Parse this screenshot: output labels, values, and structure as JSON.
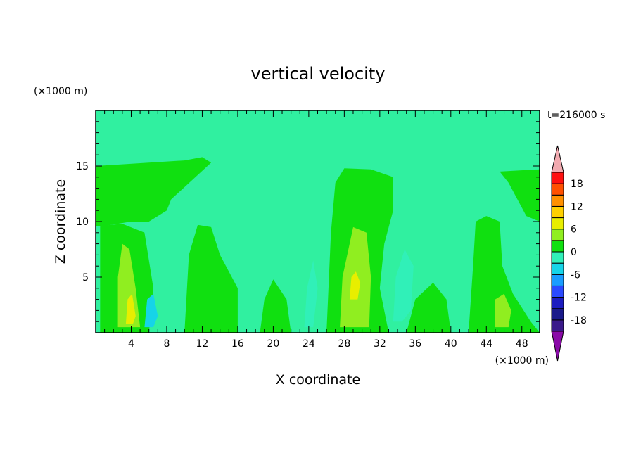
{
  "chart_data": {
    "type": "heatmap",
    "title": "vertical velocity",
    "xlabel": "X coordinate",
    "ylabel": "Z coordinate",
    "x_unit": "(×1000 m)",
    "y_unit": "(×1000 m)",
    "time_label": "t=216000 s",
    "xlim": [
      0,
      50
    ],
    "ylim": [
      0,
      20
    ],
    "xticks": [
      4,
      8,
      12,
      16,
      20,
      24,
      28,
      32,
      36,
      40,
      44,
      48
    ],
    "yticks": [
      5,
      10,
      15
    ],
    "colorbar": {
      "levels": [
        -21,
        -18,
        -15,
        -12,
        -9,
        -6,
        -3,
        0,
        3,
        6,
        9,
        12,
        15,
        18,
        21
      ],
      "labels": [
        18,
        12,
        6,
        0,
        -6,
        -12,
        -18
      ],
      "colors": [
        "#3a1a8a",
        "#1a1a8a",
        "#1c1cc0",
        "#2a4aff",
        "#1a9cff",
        "#16d4e8",
        "#30f0b8",
        "#10e010",
        "#90ee20",
        "#e8ee00",
        "#ffd000",
        "#ff9000",
        "#ff5000",
        "#ff1010"
      ],
      "under_color": "#8a0aa8",
      "over_color": "#f2aab0"
    },
    "background_level_color": "#30f0a0",
    "regions": [
      {
        "level": "0..3",
        "color": "#10e010",
        "feature": "left anvil",
        "points": [
          [
            0,
            15
          ],
          [
            10,
            15.5
          ],
          [
            12,
            15.8
          ],
          [
            13,
            15.3
          ],
          [
            8.5,
            12
          ],
          [
            8,
            11
          ],
          [
            6,
            10
          ],
          [
            4,
            10
          ],
          [
            1,
            9.6
          ],
          [
            0,
            9.6
          ]
        ]
      },
      {
        "level": "0..3",
        "color": "#10e010",
        "feature": "left updraft",
        "points": [
          [
            0.5,
            9.6
          ],
          [
            3,
            9.8
          ],
          [
            5.5,
            9
          ],
          [
            6.5,
            4
          ],
          [
            6,
            0
          ],
          [
            0.5,
            0
          ]
        ]
      },
      {
        "level": "0..3",
        "color": "#10e010",
        "feature": "cell near x=12",
        "points": [
          [
            10,
            0
          ],
          [
            10.5,
            7
          ],
          [
            11.5,
            9.7
          ],
          [
            13,
            9.5
          ],
          [
            14,
            7
          ],
          [
            16,
            4
          ],
          [
            16,
            0
          ]
        ]
      },
      {
        "level": "0..3",
        "color": "#10e010",
        "feature": "central tower",
        "points": [
          [
            26,
            0
          ],
          [
            26.5,
            9
          ],
          [
            27,
            13.5
          ],
          [
            28,
            14.8
          ],
          [
            31,
            14.7
          ],
          [
            33.5,
            14
          ],
          [
            33.5,
            11
          ],
          [
            32.5,
            8
          ],
          [
            32,
            4
          ],
          [
            33,
            0
          ]
        ]
      },
      {
        "level": "0..3",
        "color": "#10e010",
        "feature": "cell near x=44",
        "points": [
          [
            42,
            0
          ],
          [
            42.5,
            6
          ],
          [
            42.8,
            10
          ],
          [
            44,
            10.5
          ],
          [
            45.5,
            10
          ],
          [
            45.8,
            6
          ],
          [
            47,
            3.5
          ],
          [
            49,
            1
          ],
          [
            50,
            0
          ]
        ]
      },
      {
        "level": "0..3",
        "color": "#10e010",
        "feature": "right anvil",
        "points": [
          [
            45.5,
            14.5
          ],
          [
            50,
            14.7
          ],
          [
            50,
            10
          ],
          [
            48.5,
            10.5
          ],
          [
            47.5,
            12
          ],
          [
            46.5,
            13.5
          ]
        ]
      },
      {
        "level": "0..3",
        "color": "#10e010",
        "feature": "low cell x=19-22",
        "points": [
          [
            18.5,
            0
          ],
          [
            19,
            3
          ],
          [
            20,
            4.8
          ],
          [
            21.5,
            3
          ],
          [
            22,
            0
          ]
        ]
      },
      {
        "level": "0..3",
        "color": "#10e010",
        "feature": "low cell x=35-40",
        "points": [
          [
            35,
            0
          ],
          [
            36,
            3
          ],
          [
            38,
            4.5
          ],
          [
            39.5,
            3
          ],
          [
            40,
            0
          ]
        ]
      },
      {
        "level": "3..6",
        "color": "#90ee20",
        "feature": "left core",
        "points": [
          [
            2.5,
            0.5
          ],
          [
            2.5,
            5
          ],
          [
            3,
            8
          ],
          [
            3.8,
            7.5
          ],
          [
            4.5,
            4
          ],
          [
            5,
            0.5
          ]
        ]
      },
      {
        "level": "3..6",
        "color": "#90ee20",
        "feature": "central core",
        "points": [
          [
            27.5,
            0.5
          ],
          [
            27.8,
            5
          ],
          [
            29,
            9.5
          ],
          [
            30.5,
            9
          ],
          [
            31,
            5
          ],
          [
            30.8,
            0.5
          ]
        ]
      },
      {
        "level": "3..6",
        "color": "#90ee20",
        "feature": "right core",
        "points": [
          [
            45,
            0.5
          ],
          [
            45,
            3
          ],
          [
            46,
            3.5
          ],
          [
            46.8,
            2
          ],
          [
            46.5,
            0.5
          ]
        ]
      },
      {
        "level": "6..9",
        "color": "#e8ee00",
        "feature": "left max",
        "points": [
          [
            3.4,
            0.8
          ],
          [
            3.6,
            3
          ],
          [
            4.1,
            3.5
          ],
          [
            4.5,
            1.5
          ],
          [
            4.2,
            0.8
          ]
        ]
      },
      {
        "level": "6..9",
        "color": "#e8ee00",
        "feature": "central max",
        "points": [
          [
            28.6,
            3
          ],
          [
            28.8,
            5
          ],
          [
            29.3,
            5.5
          ],
          [
            29.8,
            4.5
          ],
          [
            29.5,
            3
          ]
        ]
      },
      {
        "level": "-3..0",
        "color": "#30f0b8",
        "feature": "downdraft x=34",
        "points": [
          [
            33.5,
            1
          ],
          [
            33.8,
            5
          ],
          [
            34.8,
            7.5
          ],
          [
            35.8,
            6
          ],
          [
            35.5,
            2
          ],
          [
            34.5,
            1
          ]
        ]
      },
      {
        "level": "-3..0",
        "color": "#30f0b8",
        "feature": "downdraft x=24",
        "points": [
          [
            23.5,
            0.5
          ],
          [
            23.8,
            4
          ],
          [
            24.5,
            6.5
          ],
          [
            25,
            4
          ],
          [
            24.5,
            0.5
          ]
        ]
      },
      {
        "level": "-6..-3",
        "color": "#16d4e8",
        "feature": "downdraft x=6",
        "points": [
          [
            5.5,
            0.5
          ],
          [
            5.8,
            3
          ],
          [
            6.5,
            3.5
          ],
          [
            7,
            1.5
          ],
          [
            6.5,
            0.5
          ]
        ]
      }
    ]
  }
}
